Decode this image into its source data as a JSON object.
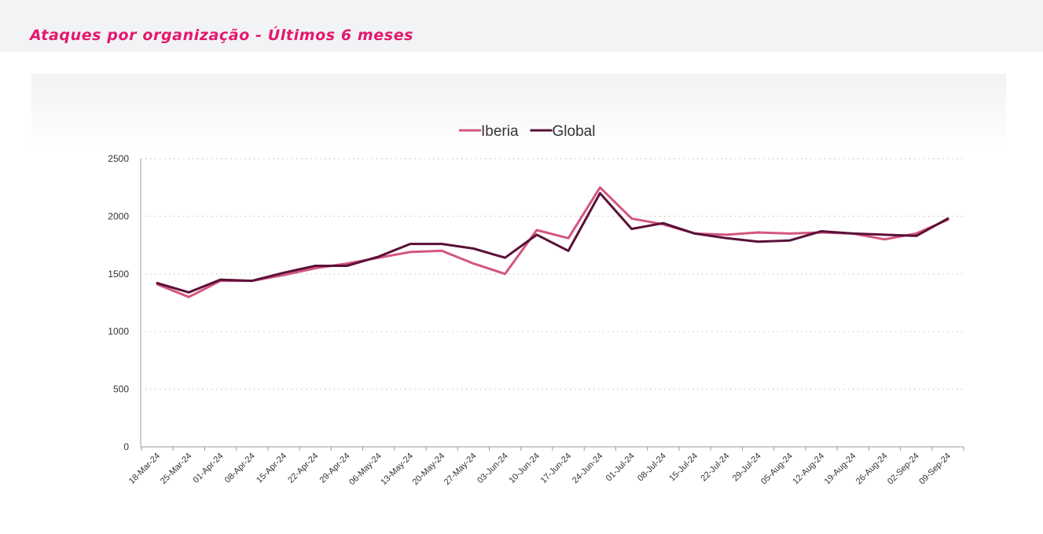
{
  "page": {
    "title": "Ataques por organização - Últimos 6 meses"
  },
  "chart_data": {
    "type": "line",
    "title": "",
    "xlabel": "",
    "ylabel": "",
    "ylim": [
      0,
      2500
    ],
    "yticks": [
      0,
      500,
      1000,
      1500,
      2000,
      2500
    ],
    "grid": "horizontal-dotted",
    "legend": "top-center",
    "categories": [
      "18-Mar-24",
      "25-Mar-24",
      "01-Apr-24",
      "08-Apr-24",
      "15-Apr-24",
      "22-Apr-24",
      "29-Apr-24",
      "06-May-24",
      "13-May-24",
      "20-May-24",
      "27-May-24",
      "03-Jun-24",
      "10-Jun-24",
      "17-Jun-24",
      "24-Jun-24",
      "01-Jul-24",
      "08-Jul-24",
      "15-Jul-24",
      "22-Jul-24",
      "29-Jul-24",
      "05-Aug-24",
      "12-Aug-24",
      "19-Aug-24",
      "26-Aug-24",
      "02-Sep-24",
      "09-Sep-24"
    ],
    "series": [
      {
        "name": "Iberia",
        "color": "#d4567f",
        "values": [
          1410,
          1300,
          1440,
          1440,
          1490,
          1550,
          1590,
          1640,
          1690,
          1700,
          1590,
          1500,
          1880,
          1810,
          2250,
          1980,
          1930,
          1850,
          1840,
          1860,
          1850,
          1860,
          1850,
          1800,
          1850,
          1970
        ]
      },
      {
        "name": "Global",
        "color": "#5a1038",
        "values": [
          1420,
          1340,
          1450,
          1440,
          1510,
          1570,
          1570,
          1650,
          1760,
          1760,
          1720,
          1640,
          1840,
          1700,
          2200,
          1890,
          1940,
          1850,
          1810,
          1780,
          1790,
          1870,
          1850,
          1840,
          1830,
          1980
        ]
      }
    ]
  }
}
